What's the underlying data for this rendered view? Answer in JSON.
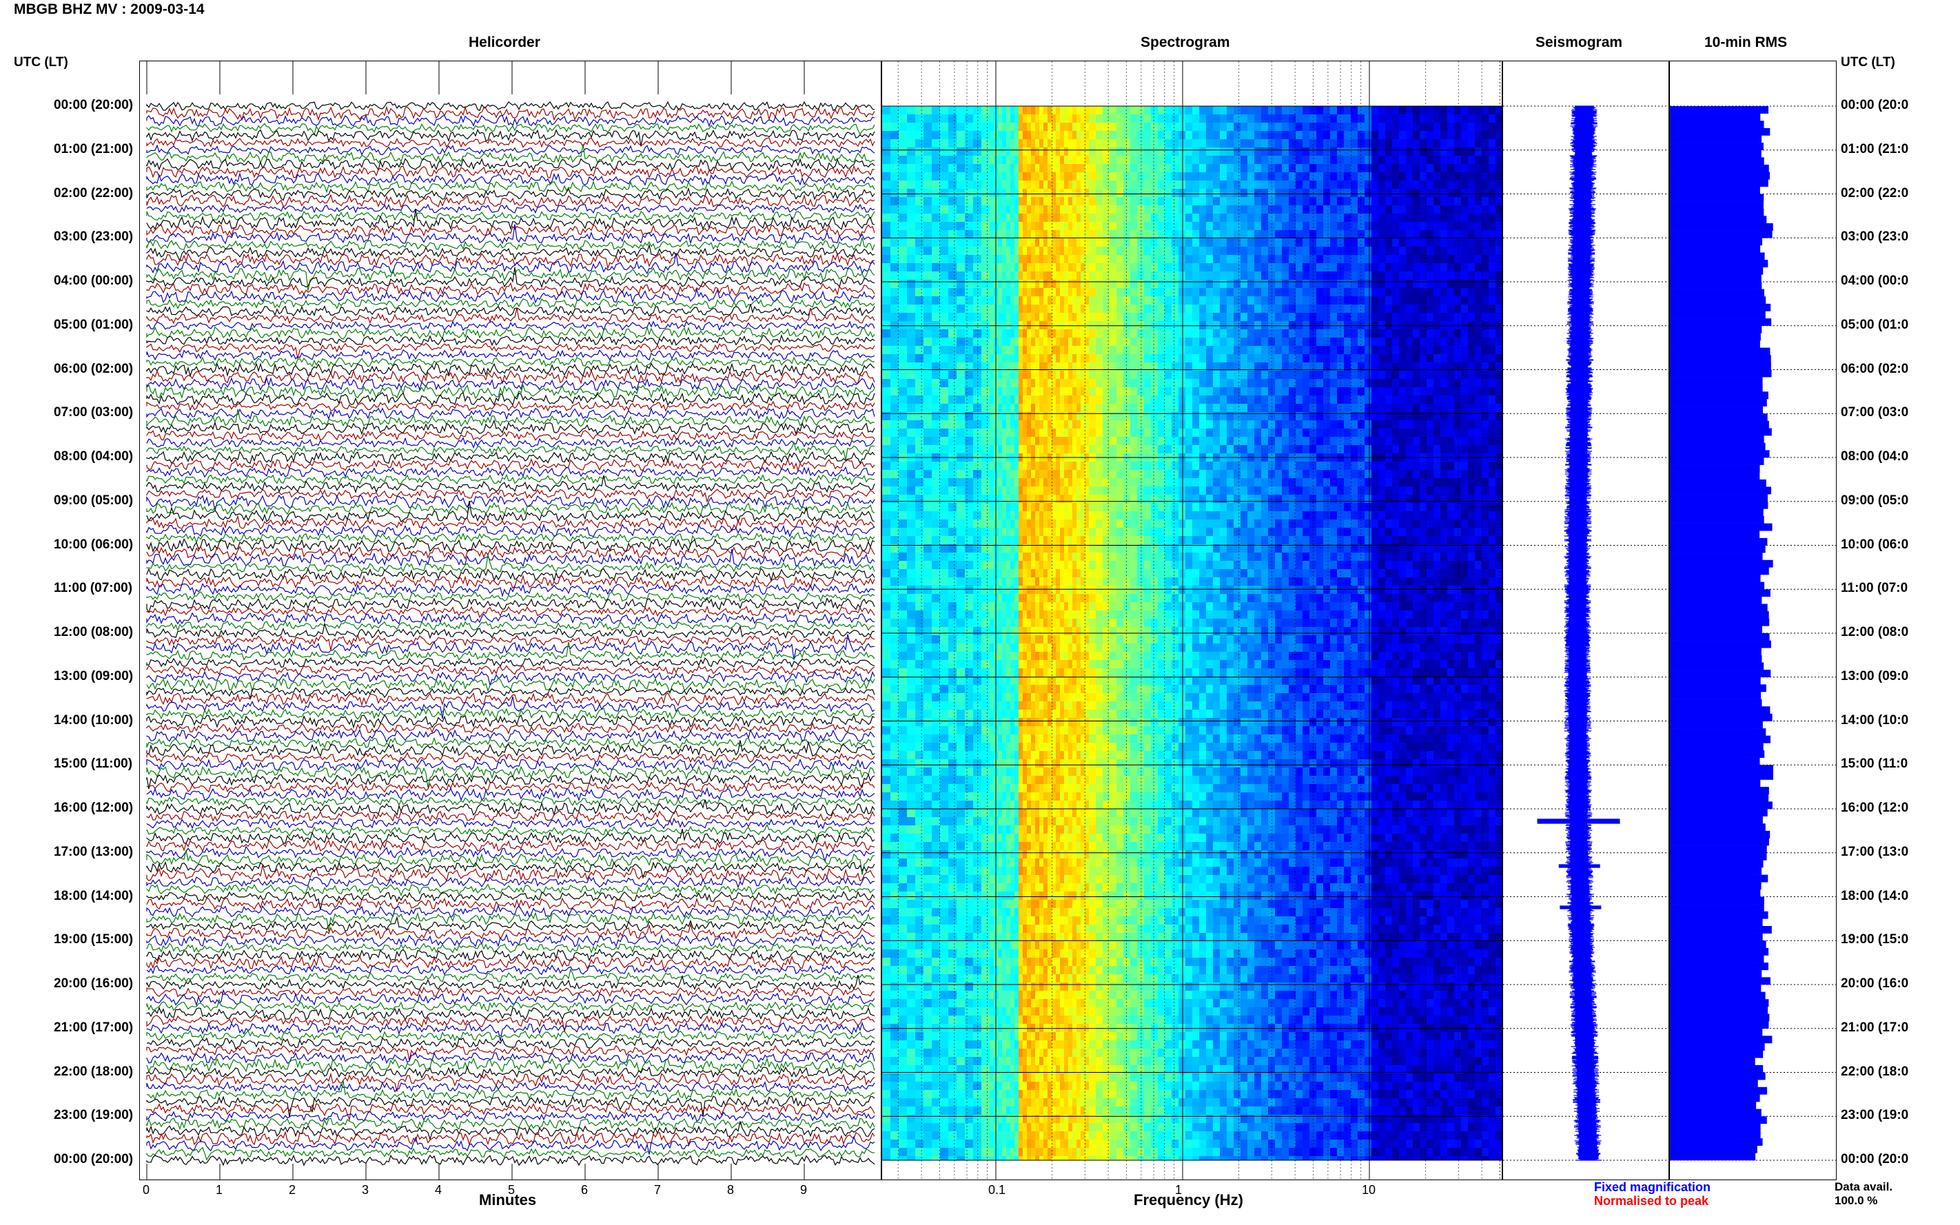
{
  "header": {
    "title": "MBGB BHZ MV : 2009-03-14",
    "utc_left": "UTC (LT)",
    "utc_right": "UTC (LT)"
  },
  "panels": {
    "helicorder": "Helicorder",
    "spectrogram": "Spectrogram",
    "seismogram": "Seismogram",
    "rms": "10-min RMS"
  },
  "axes": {
    "minutes_label": "Minutes",
    "minutes_ticks": [
      "0",
      "1",
      "2",
      "3",
      "4",
      "5",
      "6",
      "7",
      "8",
      "9"
    ],
    "frequency_label": "Frequency (Hz)",
    "frequency_ticks": [
      "0.1",
      "1",
      "10"
    ]
  },
  "time_labels_left": [
    "00:00 (20:00)",
    "01:00 (21:00)",
    "02:00 (22:00)",
    "03:00 (23:00)",
    "04:00 (00:00)",
    "05:00 (01:00)",
    "06:00 (02:00)",
    "07:00 (03:00)",
    "08:00 (04:00)",
    "09:00 (05:00)",
    "10:00 (06:00)",
    "11:00 (07:00)",
    "12:00 (08:00)",
    "13:00 (09:00)",
    "14:00 (10:00)",
    "15:00 (11:00)",
    "16:00 (12:00)",
    "17:00 (13:00)",
    "18:00 (14:00)",
    "19:00 (15:00)",
    "20:00 (16:00)",
    "21:00 (17:00)",
    "22:00 (18:00)",
    "23:00 (19:00)",
    "00:00 (20:00)"
  ],
  "time_labels_right": [
    "00:00 (20:0",
    "01:00 (21:0",
    "02:00 (22:0",
    "03:00 (23:0",
    "04:00 (00:0",
    "05:00 (01:0",
    "06:00 (02:0",
    "07:00 (03:0",
    "08:00 (04:0",
    "09:00 (05:0",
    "10:00 (06:0",
    "11:00 (07:0",
    "12:00 (08:0",
    "13:00 (09:0",
    "14:00 (10:0",
    "15:00 (11:0",
    "16:00 (12:0",
    "17:00 (13:0",
    "18:00 (14:0",
    "19:00 (15:0",
    "20:00 (16:0",
    "21:00 (17:0",
    "22:00 (18:0",
    "23:00 (19:0",
    "00:00 (20:0"
  ],
  "legend": {
    "fixed": "Fixed magnification",
    "normalised": "Normalised to peak",
    "fixed_color": "#0000ff",
    "normalised_color": "#ff0000"
  },
  "availability": {
    "label": "Data avail.",
    "value": "100.0 %"
  },
  "colors": {
    "trace_cycle": [
      "#000000",
      "#a00000",
      "#0000c0",
      "#008000"
    ],
    "rms_bar": "#0000ff",
    "seismogram": "#0000ff"
  },
  "chart_data": {
    "type": "heatmap",
    "title": "MBGB BHZ MV : 2009-03-14",
    "helicorder": {
      "xlabel": "Minutes",
      "xlim": [
        0,
        10
      ],
      "rows_per_hour": 6,
      "hours": 24,
      "trace_colors_cycle": [
        "black",
        "red",
        "blue",
        "green"
      ]
    },
    "spectrogram": {
      "xlabel": "Frequency (Hz)",
      "x_scale": "log",
      "xlim": [
        0.01,
        50
      ],
      "peak_band_hz": [
        0.14,
        0.3
      ],
      "colormap": "jet"
    },
    "rms_10min": {
      "type": "bar",
      "approx_level": "roughly constant across the day"
    },
    "data_availability_percent": 100.0
  }
}
